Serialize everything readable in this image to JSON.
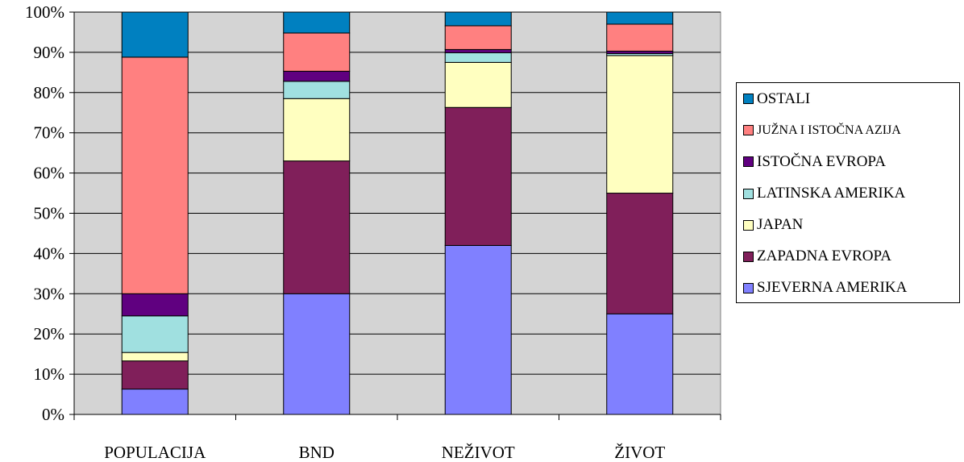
{
  "chart_data": {
    "type": "bar",
    "stacked": true,
    "percent_stacked": true,
    "title": "",
    "xlabel": "",
    "ylabel": "",
    "ylim": [
      0,
      100
    ],
    "y_ticks": [
      "0%",
      "10%",
      "20%",
      "30%",
      "40%",
      "50%",
      "60%",
      "70%",
      "80%",
      "90%",
      "100%"
    ],
    "grid": true,
    "legend_position": "right",
    "categories": [
      "POPULACIJA",
      "BND",
      "NEŽIVOT",
      "ŽIVOT"
    ],
    "series": [
      {
        "name": "SJEVERNA AMERIKA",
        "color": "#8080ff",
        "values": [
          6.3,
          30,
          42,
          25
        ]
      },
      {
        "name": "ZAPADNA EVROPA",
        "color": "#801f5a",
        "values": [
          7,
          33,
          34.3,
          30
        ]
      },
      {
        "name": "JAPAN",
        "color": "#ffffc0",
        "values": [
          2.1,
          15.5,
          11.2,
          34.2
        ]
      },
      {
        "name": "LATINSKA AMERIKA",
        "color": "#a0e0e0",
        "values": [
          9.1,
          4.3,
          2.4,
          0.5
        ]
      },
      {
        "name": "ISTOČNA EVROPA",
        "color": "#600080",
        "values": [
          5.5,
          2.5,
          0.8,
          0.6
        ]
      },
      {
        "name": "JUŽNA I ISTOČNA AZIJA",
        "color": "#ff8080",
        "values": [
          58.8,
          9.5,
          5.9,
          6.7
        ]
      },
      {
        "name": "OSTALI",
        "color": "#0080c0",
        "values": [
          11.2,
          5.2,
          3.4,
          3
        ]
      }
    ]
  }
}
